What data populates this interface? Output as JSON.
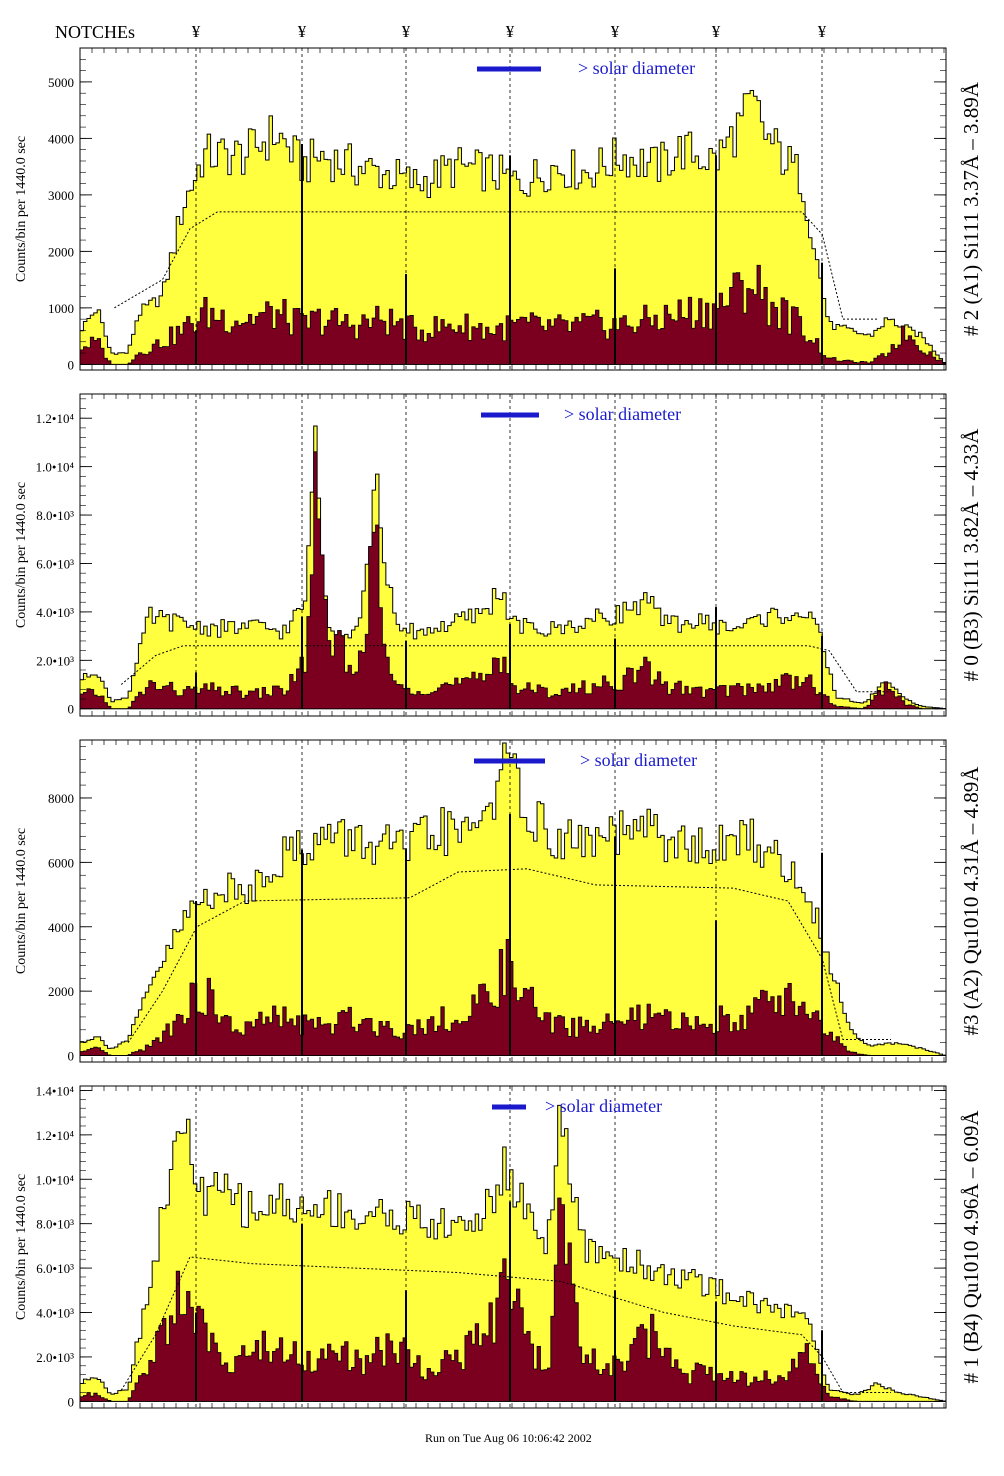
{
  "header": {
    "notches_label": "NOTCHEs",
    "notch_symbol": "¥"
  },
  "footer": {
    "run_text": "Run on Tue Aug 06 10:06:42 2002"
  },
  "colors": {
    "upper_fill": "#ffff40",
    "lower_fill": "#7b0020",
    "annotation": "#1a1acc",
    "frame": "#000000"
  },
  "chart_data": [
    {
      "type": "area",
      "panel_title": "# 2 (A1) Si111  3.37Å – 3.89Å",
      "ylabel": "Counts/bin per   1440.0 sec",
      "legend": "> solar diameter",
      "ylim": [
        -100,
        5600
      ],
      "yticks": [
        0,
        1000,
        2000,
        3000,
        4000,
        5000
      ],
      "ytick_labels": [
        "0",
        "1000",
        "2000",
        "3000",
        "4000",
        "5000"
      ],
      "upper_profile": [
        [
          0,
          600
        ],
        [
          5,
          1000
        ],
        [
          9,
          200
        ],
        [
          14,
          200
        ],
        [
          17,
          900
        ],
        [
          24,
          1200
        ],
        [
          30,
          2800
        ],
        [
          36,
          3700
        ],
        [
          48,
          3700
        ],
        [
          57,
          4100
        ],
        [
          65,
          3500
        ],
        [
          70,
          3700
        ],
        [
          80,
          3500
        ],
        [
          88,
          3400
        ],
        [
          98,
          3200
        ],
        [
          110,
          3500
        ],
        [
          120,
          3400
        ],
        [
          128,
          3200
        ],
        [
          138,
          3500
        ],
        [
          148,
          3400
        ],
        [
          158,
          3700
        ],
        [
          168,
          3500
        ],
        [
          175,
          3800
        ],
        [
          185,
          3600
        ],
        [
          196,
          4600
        ],
        [
          200,
          4000
        ],
        [
          210,
          3300
        ],
        [
          218,
          700
        ],
        [
          224,
          600
        ],
        [
          230,
          500
        ],
        [
          235,
          800
        ],
        [
          240,
          650
        ],
        [
          245,
          500
        ],
        [
          252,
          0
        ]
      ],
      "lower_profile": [
        [
          0,
          300
        ],
        [
          5,
          400
        ],
        [
          9,
          0
        ],
        [
          14,
          0
        ],
        [
          17,
          200
        ],
        [
          24,
          400
        ],
        [
          30,
          600
        ],
        [
          36,
          900
        ],
        [
          48,
          800
        ],
        [
          57,
          900
        ],
        [
          65,
          700
        ],
        [
          70,
          800
        ],
        [
          80,
          700
        ],
        [
          88,
          800
        ],
        [
          98,
          600
        ],
        [
          110,
          700
        ],
        [
          120,
          600
        ],
        [
          128,
          700
        ],
        [
          138,
          650
        ],
        [
          148,
          700
        ],
        [
          158,
          700
        ],
        [
          168,
          800
        ],
        [
          175,
          900
        ],
        [
          185,
          1000
        ],
        [
          196,
          1500
        ],
        [
          200,
          1100
        ],
        [
          210,
          700
        ],
        [
          218,
          100
        ],
        [
          224,
          50
        ],
        [
          230,
          30
        ],
        [
          235,
          200
        ],
        [
          240,
          600
        ],
        [
          245,
          300
        ],
        [
          252,
          0
        ]
      ],
      "mean_curve": [
        [
          10,
          1000
        ],
        [
          24,
          1500
        ],
        [
          32,
          2400
        ],
        [
          40,
          2700
        ],
        [
          210,
          2700
        ],
        [
          216,
          2300
        ],
        [
          222,
          800
        ],
        [
          232,
          800
        ]
      ],
      "notches_y": [
        600,
        3900,
        1600,
        3700,
        1700,
        3700,
        1800
      ]
    },
    {
      "type": "area",
      "panel_title": "# 0 (B3) Si111  3.82Å – 4.33Å",
      "ylabel": "Counts/bin per   1440.0 sec",
      "legend": "> solar diameter",
      "ylim": [
        -300,
        13000
      ],
      "yticks": [
        0,
        2000,
        4000,
        6000,
        8000,
        10000,
        12000
      ],
      "ytick_labels": [
        "0",
        "2.0•10³",
        "4.0•10³",
        "6.0•10³",
        "8.0•10³",
        "1.0•10⁴",
        "1.2•10⁴"
      ],
      "upper_profile": [
        [
          0,
          1200
        ],
        [
          5,
          1600
        ],
        [
          9,
          300
        ],
        [
          14,
          500
        ],
        [
          20,
          3800
        ],
        [
          30,
          3500
        ],
        [
          40,
          3300
        ],
        [
          50,
          3400
        ],
        [
          60,
          3200
        ],
        [
          66,
          4500
        ],
        [
          68,
          11700
        ],
        [
          72,
          3500
        ],
        [
          80,
          3200
        ],
        [
          83,
          5000
        ],
        [
          86,
          9500
        ],
        [
          88,
          7000
        ],
        [
          92,
          3200
        ],
        [
          100,
          3200
        ],
        [
          110,
          3600
        ],
        [
          118,
          4000
        ],
        [
          122,
          5000
        ],
        [
          126,
          3500
        ],
        [
          135,
          3200
        ],
        [
          145,
          3500
        ],
        [
          158,
          4000
        ],
        [
          165,
          4500
        ],
        [
          170,
          3500
        ],
        [
          180,
          3600
        ],
        [
          190,
          3300
        ],
        [
          200,
          3800
        ],
        [
          210,
          4000
        ],
        [
          215,
          3200
        ],
        [
          220,
          500
        ],
        [
          228,
          200
        ],
        [
          235,
          1200
        ],
        [
          240,
          400
        ],
        [
          245,
          100
        ],
        [
          252,
          0
        ]
      ],
      "lower_profile": [
        [
          0,
          500
        ],
        [
          5,
          700
        ],
        [
          9,
          0
        ],
        [
          14,
          0
        ],
        [
          20,
          1000
        ],
        [
          30,
          700
        ],
        [
          40,
          800
        ],
        [
          50,
          600
        ],
        [
          60,
          800
        ],
        [
          66,
          2000
        ],
        [
          68,
          9000
        ],
        [
          70,
          6000
        ],
        [
          72,
          2500
        ],
        [
          76,
          3200
        ],
        [
          80,
          1000
        ],
        [
          83,
          4000
        ],
        [
          86,
          7000
        ],
        [
          88,
          3000
        ],
        [
          92,
          800
        ],
        [
          100,
          900
        ],
        [
          110,
          1000
        ],
        [
          118,
          1200
        ],
        [
          122,
          2600
        ],
        [
          126,
          900
        ],
        [
          135,
          700
        ],
        [
          145,
          800
        ],
        [
          158,
          1200
        ],
        [
          165,
          1600
        ],
        [
          170,
          1000
        ],
        [
          180,
          700
        ],
        [
          190,
          800
        ],
        [
          200,
          900
        ],
        [
          210,
          1400
        ],
        [
          215,
          700
        ],
        [
          220,
          100
        ],
        [
          228,
          0
        ],
        [
          235,
          1000
        ],
        [
          240,
          200
        ],
        [
          245,
          0
        ],
        [
          252,
          0
        ]
      ],
      "mean_curve": [
        [
          12,
          1000
        ],
        [
          22,
          2200
        ],
        [
          30,
          2600
        ],
        [
          212,
          2600
        ],
        [
          218,
          2400
        ],
        [
          226,
          700
        ],
        [
          236,
          700
        ]
      ],
      "notches_y": [
        1500,
        3800,
        2800,
        3500,
        2900,
        4200,
        3000
      ]
    },
    {
      "type": "area",
      "panel_title": "#3 (A2) Qu1010  4.31Å – 4.89Å",
      "ylabel": "Counts/bin per   1440.0 sec",
      "legend": "> solar diameter",
      "ylim": [
        -200,
        9800
      ],
      "yticks": [
        0,
        2000,
        4000,
        6000,
        8000
      ],
      "ytick_labels": [
        "0",
        "2000",
        "4000",
        "6000",
        "8000"
      ],
      "upper_profile": [
        [
          0,
          400
        ],
        [
          5,
          600
        ],
        [
          9,
          200
        ],
        [
          14,
          500
        ],
        [
          22,
          2500
        ],
        [
          32,
          4500
        ],
        [
          40,
          5200
        ],
        [
          48,
          5000
        ],
        [
          56,
          6000
        ],
        [
          64,
          6500
        ],
        [
          72,
          6800
        ],
        [
          80,
          6700
        ],
        [
          88,
          6500
        ],
        [
          96,
          6400
        ],
        [
          104,
          7000
        ],
        [
          112,
          6800
        ],
        [
          120,
          8000
        ],
        [
          124,
          9000
        ],
        [
          130,
          7800
        ],
        [
          136,
          6800
        ],
        [
          145,
          6600
        ],
        [
          155,
          6800
        ],
        [
          165,
          7000
        ],
        [
          175,
          6500
        ],
        [
          185,
          6400
        ],
        [
          195,
          6800
        ],
        [
          204,
          6000
        ],
        [
          212,
          5000
        ],
        [
          218,
          3000
        ],
        [
          224,
          800
        ],
        [
          230,
          300
        ],
        [
          236,
          400
        ],
        [
          242,
          300
        ],
        [
          252,
          0
        ]
      ],
      "lower_profile": [
        [
          0,
          100
        ],
        [
          5,
          200
        ],
        [
          9,
          0
        ],
        [
          14,
          0
        ],
        [
          22,
          400
        ],
        [
          30,
          1400
        ],
        [
          36,
          2000
        ],
        [
          42,
          1000
        ],
        [
          48,
          800
        ],
        [
          56,
          1200
        ],
        [
          64,
          1000
        ],
        [
          72,
          900
        ],
        [
          80,
          1200
        ],
        [
          88,
          900
        ],
        [
          96,
          800
        ],
        [
          104,
          1200
        ],
        [
          112,
          1000
        ],
        [
          120,
          2200
        ],
        [
          124,
          2700
        ],
        [
          130,
          1800
        ],
        [
          136,
          1000
        ],
        [
          145,
          900
        ],
        [
          155,
          1000
        ],
        [
          165,
          1200
        ],
        [
          175,
          1000
        ],
        [
          185,
          1100
        ],
        [
          195,
          1300
        ],
        [
          204,
          1900
        ],
        [
          212,
          1500
        ],
        [
          218,
          700
        ],
        [
          224,
          100
        ],
        [
          230,
          0
        ],
        [
          252,
          0
        ]
      ],
      "mean_curve": [
        [
          14,
          400
        ],
        [
          24,
          2000
        ],
        [
          34,
          4000
        ],
        [
          48,
          4800
        ],
        [
          96,
          4900
        ],
        [
          110,
          5700
        ],
        [
          130,
          5800
        ],
        [
          150,
          5300
        ],
        [
          190,
          5200
        ],
        [
          206,
          4800
        ],
        [
          216,
          3000
        ],
        [
          222,
          500
        ],
        [
          236,
          500
        ]
      ],
      "notches_y": [
        4800,
        6400,
        6400,
        7500,
        6800,
        4200,
        6300
      ]
    },
    {
      "type": "area",
      "panel_title": "# 1 (B4) Qu1010 4.96Å – 6.09Å",
      "ylabel": "Counts/bin per   1440.0 sec",
      "legend": "> solar diameter",
      "ylim": [
        -300,
        14200
      ],
      "yticks": [
        0,
        2000,
        4000,
        6000,
        8000,
        10000,
        12000,
        14000
      ],
      "ytick_labels": [
        "0",
        "2.0•10³",
        "4.0•10³",
        "6.0•10³",
        "8.0•10³",
        "1.0•10⁴",
        "1.2•10⁴",
        "1.4•10⁴"
      ],
      "upper_profile": [
        [
          0,
          800
        ],
        [
          5,
          1200
        ],
        [
          9,
          300
        ],
        [
          14,
          600
        ],
        [
          20,
          5000
        ],
        [
          26,
          10000
        ],
        [
          30,
          12500
        ],
        [
          36,
          9000
        ],
        [
          42,
          9500
        ],
        [
          50,
          8500
        ],
        [
          58,
          9000
        ],
        [
          66,
          8500
        ],
        [
          74,
          8800
        ],
        [
          82,
          8200
        ],
        [
          90,
          8500
        ],
        [
          100,
          8000
        ],
        [
          110,
          7800
        ],
        [
          118,
          8500
        ],
        [
          124,
          10500
        ],
        [
          132,
          8000
        ],
        [
          136,
          7200
        ],
        [
          140,
          12700
        ],
        [
          146,
          7000
        ],
        [
          156,
          6500
        ],
        [
          166,
          6000
        ],
        [
          176,
          5500
        ],
        [
          186,
          5000
        ],
        [
          196,
          4500
        ],
        [
          206,
          4000
        ],
        [
          212,
          3800
        ],
        [
          218,
          500
        ],
        [
          226,
          300
        ],
        [
          232,
          800
        ],
        [
          238,
          400
        ],
        [
          252,
          0
        ]
      ],
      "lower_profile": [
        [
          0,
          200
        ],
        [
          5,
          400
        ],
        [
          9,
          0
        ],
        [
          14,
          0
        ],
        [
          20,
          1500
        ],
        [
          26,
          4000
        ],
        [
          30,
          5500
        ],
        [
          36,
          2800
        ],
        [
          42,
          2000
        ],
        [
          50,
          2200
        ],
        [
          58,
          2500
        ],
        [
          66,
          1800
        ],
        [
          74,
          2300
        ],
        [
          82,
          1600
        ],
        [
          90,
          2600
        ],
        [
          100,
          1500
        ],
        [
          110,
          2000
        ],
        [
          118,
          3000
        ],
        [
          124,
          5000
        ],
        [
          132,
          2200
        ],
        [
          136,
          1500
        ],
        [
          140,
          8000
        ],
        [
          146,
          2000
        ],
        [
          156,
          1500
        ],
        [
          166,
          3000
        ],
        [
          176,
          1200
        ],
        [
          186,
          1500
        ],
        [
          196,
          1000
        ],
        [
          206,
          1200
        ],
        [
          212,
          2000
        ],
        [
          218,
          200
        ],
        [
          226,
          0
        ],
        [
          252,
          0
        ]
      ],
      "mean_curve": [
        [
          12,
          500
        ],
        [
          22,
          3000
        ],
        [
          32,
          6500
        ],
        [
          50,
          6200
        ],
        [
          80,
          6000
        ],
        [
          110,
          5800
        ],
        [
          140,
          5400
        ],
        [
          170,
          4000
        ],
        [
          190,
          3400
        ],
        [
          210,
          3000
        ],
        [
          216,
          2000
        ],
        [
          222,
          400
        ],
        [
          236,
          400
        ]
      ],
      "notches_y": [
        4000,
        8000,
        5000,
        9000,
        5000,
        4500,
        3200
      ]
    }
  ]
}
